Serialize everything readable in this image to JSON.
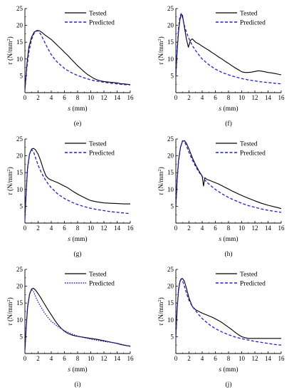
{
  "figure": {
    "colors": {
      "tested": "#000000",
      "predicted": "#1f1fd6",
      "axis": "#000000"
    }
  },
  "chart_data": [
    {
      "type": "line",
      "panel_label": "(e)",
      "xlabel_var": "s",
      "xlabel_unit": " (mm)",
      "ylabel_var": "τ",
      "ylabel_unit": " (N/mm",
      "ylabel_sup": "2",
      "ylabel_close": ")",
      "xlim": [
        0,
        16
      ],
      "ylim": [
        0,
        25
      ],
      "xticks": [
        "0",
        "2",
        "4",
        "6",
        "8",
        "10",
        "12",
        "14",
        "16"
      ],
      "yticks": [
        "5",
        "10",
        "15",
        "20",
        "25"
      ],
      "grid": false,
      "legend_position": "top-right",
      "series": [
        {
          "name": "Tested",
          "style": "solid",
          "x": [
            0,
            0.3,
            0.6,
            1.0,
            1.4,
            1.8,
            2.2,
            2.6,
            3.0,
            3.5,
            4.0,
            4.5,
            5.0,
            5.5,
            6.0,
            6.5,
            7.0,
            7.5,
            8.0,
            8.5,
            9.0,
            9.5,
            10.0,
            10.5,
            11.0,
            11.5,
            12.0,
            12.5,
            13.0,
            13.5,
            14.0,
            14.5,
            15.0,
            15.5,
            16.0
          ],
          "y": [
            1.0,
            8.5,
            13.5,
            16.5,
            18.0,
            18.5,
            18.4,
            17.9,
            17.2,
            16.5,
            15.8,
            14.9,
            13.9,
            13.0,
            12.0,
            11.1,
            10.0,
            9.0,
            8.0,
            7.1,
            6.2,
            5.4,
            4.8,
            4.2,
            3.8,
            3.5,
            3.3,
            3.2,
            3.1,
            3.0,
            2.9,
            2.7,
            2.6,
            2.5,
            2.4
          ]
        },
        {
          "name": "Predicted",
          "style": "dashed",
          "x": [
            0,
            0.3,
            0.6,
            1.0,
            1.4,
            1.8,
            2.0,
            2.4,
            2.8,
            3.2,
            3.6,
            4.0,
            4.5,
            5.0,
            6.0,
            7.0,
            8.0,
            9.0,
            10.0,
            11.0,
            12.0,
            13.0,
            14.0,
            15.0,
            16.0
          ],
          "y": [
            0.8,
            7.5,
            12.0,
            15.8,
            17.7,
            18.4,
            18.3,
            17.4,
            15.8,
            14.2,
            12.7,
            11.3,
            10.0,
            8.9,
            7.2,
            6.0,
            5.1,
            4.4,
            3.8,
            3.4,
            3.1,
            2.8,
            2.6,
            2.4,
            2.3
          ]
        }
      ]
    },
    {
      "type": "line",
      "panel_label": "(f)",
      "xlabel_var": "s",
      "xlabel_unit": " (mm)",
      "ylabel_var": "τ",
      "ylabel_unit": " (N/mm",
      "ylabel_sup": "2",
      "ylabel_close": ")",
      "xlim": [
        0,
        16
      ],
      "ylim": [
        0,
        25
      ],
      "xticks": [
        "0",
        "2",
        "4",
        "6",
        "8",
        "10",
        "12",
        "14",
        "16"
      ],
      "yticks": [
        "5",
        "10",
        "15",
        "20",
        "25"
      ],
      "grid": false,
      "legend_position": "top-right",
      "series": [
        {
          "name": "Tested",
          "style": "solid",
          "x": [
            0,
            0.2,
            0.4,
            0.6,
            0.8,
            1.0,
            1.3,
            1.6,
            1.9,
            2.2,
            2.5,
            3.0,
            3.5,
            4.0,
            4.5,
            5.0,
            5.5,
            6.0,
            6.5,
            7.0,
            7.5,
            8.0,
            8.5,
            9.0,
            9.5,
            10.0,
            10.5,
            11.0,
            11.5,
            12.0,
            12.5,
            13.0,
            13.5,
            14.0,
            14.5,
            15.0,
            15.5,
            16.0
          ],
          "y": [
            5.0,
            12.0,
            18.0,
            21.5,
            23.3,
            23.0,
            19.5,
            16.0,
            13.5,
            15.5,
            16.0,
            15.0,
            14.5,
            13.8,
            13.2,
            12.6,
            11.9,
            11.3,
            10.6,
            10.0,
            9.3,
            8.7,
            8.0,
            7.4,
            6.8,
            6.2,
            6.0,
            6.0,
            6.1,
            6.3,
            6.5,
            6.4,
            6.2,
            6.0,
            5.9,
            5.7,
            5.5,
            5.3
          ]
        },
        {
          "name": "Predicted",
          "style": "dashed",
          "x": [
            0,
            0.2,
            0.4,
            0.6,
            0.8,
            1.0,
            1.3,
            1.6,
            2.0,
            2.5,
            3.0,
            3.5,
            4.0,
            5.0,
            6.0,
            7.0,
            8.0,
            9.0,
            10.0,
            11.0,
            12.0,
            13.0,
            14.0,
            15.0,
            16.0
          ],
          "y": [
            5.0,
            13.0,
            19.0,
            22.5,
            23.5,
            22.3,
            20.0,
            18.0,
            16.0,
            14.0,
            12.5,
            11.2,
            10.0,
            8.3,
            7.0,
            6.0,
            5.3,
            4.7,
            4.2,
            3.8,
            3.5,
            3.2,
            3.0,
            2.8,
            2.6
          ]
        }
      ]
    },
    {
      "type": "line",
      "panel_label": "(g)",
      "xlabel_var": "s",
      "xlabel_unit": " (mm)",
      "ylabel_var": "τ",
      "ylabel_unit": " (N/mm",
      "ylabel_sup": "2",
      "ylabel_close": ")",
      "xlim": [
        0,
        16
      ],
      "ylim": [
        0,
        25
      ],
      "xticks": [
        "0",
        "2",
        "4",
        "6",
        "8",
        "10",
        "12",
        "14",
        "16"
      ],
      "yticks": [
        "5",
        "10",
        "15",
        "20",
        "25"
      ],
      "grid": false,
      "legend_position": "top-right",
      "series": [
        {
          "name": "Tested",
          "style": "solid",
          "x": [
            0,
            0.2,
            0.4,
            0.7,
            1.0,
            1.3,
            1.6,
            2.0,
            2.4,
            2.8,
            3.2,
            3.6,
            4.0,
            4.5,
            5.0,
            5.5,
            6.0,
            6.5,
            7.0,
            7.5,
            8.0,
            8.5,
            9.0,
            9.5,
            10.0,
            11.0,
            12.0,
            13.0,
            14.0,
            15.0,
            16.0
          ],
          "y": [
            1.5,
            10.0,
            16.5,
            20.5,
            22.0,
            22.2,
            21.8,
            20.5,
            18.5,
            16.0,
            14.0,
            13.2,
            12.8,
            12.4,
            12.0,
            11.5,
            11.0,
            10.5,
            9.8,
            9.2,
            8.6,
            8.1,
            7.6,
            7.1,
            6.7,
            6.3,
            6.0,
            5.9,
            5.8,
            5.7,
            5.7
          ]
        },
        {
          "name": "Predicted",
          "style": "dashed",
          "x": [
            0,
            0.2,
            0.4,
            0.7,
            1.0,
            1.3,
            1.6,
            2.0,
            2.5,
            3.0,
            3.5,
            4.0,
            5.0,
            6.0,
            7.0,
            8.0,
            9.0,
            10.0,
            11.0,
            12.0,
            13.0,
            14.0,
            15.0,
            16.0
          ],
          "y": [
            1.0,
            9.5,
            16.0,
            20.5,
            21.8,
            21.3,
            19.5,
            17.2,
            15.0,
            13.2,
            11.7,
            10.5,
            8.6,
            7.3,
            6.3,
            5.5,
            4.9,
            4.4,
            4.0,
            3.7,
            3.4,
            3.2,
            3.0,
            2.8
          ]
        }
      ]
    },
    {
      "type": "line",
      "panel_label": "(h)",
      "xlabel_var": "s",
      "xlabel_unit": " (mm)",
      "ylabel_var": "τ",
      "ylabel_unit": " (N/mm",
      "ylabel_sup": "2",
      "ylabel_close": ")",
      "xlim": [
        0,
        16
      ],
      "ylim": [
        0,
        25
      ],
      "xticks": [
        "0",
        "2",
        "4",
        "6",
        "8",
        "10",
        "12",
        "14",
        "16"
      ],
      "yticks": [
        "5",
        "10",
        "15",
        "20",
        "25"
      ],
      "grid": false,
      "legend_position": "top-right",
      "series": [
        {
          "name": "Tested",
          "style": "solid",
          "x": [
            0,
            0.2,
            0.4,
            0.7,
            1.0,
            1.3,
            1.6,
            2.0,
            2.5,
            3.0,
            3.5,
            4.0,
            4.2,
            4.4,
            4.7,
            5.0,
            5.5,
            6.0,
            6.5,
            7.0,
            7.5,
            8.0,
            8.5,
            9.0,
            10.0,
            11.0,
            12.0,
            13.0,
            14.0,
            15.0,
            15.5,
            16.0
          ],
          "y": [
            5.0,
            13.0,
            18.5,
            22.5,
            24.3,
            24.5,
            23.8,
            22.0,
            19.5,
            17.3,
            15.5,
            14.0,
            11.0,
            13.5,
            13.0,
            12.8,
            12.4,
            12.0,
            11.6,
            11.1,
            10.6,
            10.1,
            9.6,
            9.1,
            8.2,
            7.4,
            6.6,
            5.9,
            5.3,
            4.8,
            4.6,
            4.3
          ]
        },
        {
          "name": "Predicted",
          "style": "dashed",
          "x": [
            0,
            0.2,
            0.4,
            0.7,
            1.0,
            1.3,
            1.6,
            2.0,
            2.5,
            3.0,
            3.5,
            4.0,
            4.5,
            5.0,
            6.0,
            7.0,
            8.0,
            9.0,
            10.0,
            11.0,
            12.0,
            13.0,
            14.0,
            15.0,
            16.0
          ],
          "y": [
            5.0,
            12.5,
            18.0,
            22.5,
            24.5,
            24.3,
            23.0,
            21.0,
            18.8,
            16.8,
            15.2,
            13.8,
            12.6,
            11.6,
            10.0,
            8.7,
            7.6,
            6.7,
            5.9,
            5.2,
            4.7,
            4.2,
            3.8,
            3.5,
            3.2
          ]
        }
      ]
    },
    {
      "type": "line",
      "panel_label": "(i)",
      "xlabel_var": "s",
      "xlabel_unit": " (mm)",
      "ylabel_var": "τ",
      "ylabel_unit": " (N/mm",
      "ylabel_sup": "2",
      "ylabel_close": ")",
      "xlim": [
        0,
        16
      ],
      "ylim": [
        0,
        25
      ],
      "xticks": [
        "0",
        "2",
        "4",
        "6",
        "8",
        "10",
        "12",
        "14",
        "16"
      ],
      "yticks": [
        "5",
        "10",
        "15",
        "20",
        "25"
      ],
      "grid": false,
      "legend_position": "top-right",
      "series": [
        {
          "name": "Tested",
          "style": "solid",
          "x": [
            0,
            0.2,
            0.4,
            0.7,
            1.0,
            1.3,
            1.6,
            2.0,
            2.5,
            3.0,
            3.5,
            4.0,
            4.5,
            5.0,
            5.5,
            6.0,
            6.5,
            7.0,
            7.5,
            8.0,
            9.0,
            10.0,
            11.0,
            12.0,
            13.0,
            14.0,
            14.5,
            15.0,
            15.5,
            16.0
          ],
          "y": [
            1.0,
            8.0,
            13.5,
            17.5,
            19.2,
            19.4,
            18.9,
            17.8,
            16.3,
            14.6,
            13.0,
            11.5,
            10.0,
            8.6,
            7.5,
            6.6,
            6.0,
            5.6,
            5.3,
            5.1,
            4.8,
            4.5,
            4.2,
            3.8,
            3.4,
            3.0,
            2.7,
            2.5,
            2.3,
            2.2
          ]
        },
        {
          "name": "Predicted",
          "style": "dotted",
          "x": [
            0,
            0.2,
            0.4,
            0.7,
            1.0,
            1.3,
            1.6,
            2.0,
            2.5,
            3.0,
            3.5,
            4.0,
            5.0,
            6.0,
            7.0,
            8.0,
            9.0,
            10.0,
            11.0,
            12.0,
            13.0,
            14.0,
            15.0,
            16.0
          ],
          "y": [
            1.0,
            8.5,
            14.0,
            17.8,
            19.0,
            18.5,
            17.0,
            15.3,
            13.6,
            12.0,
            10.7,
            9.6,
            8.0,
            6.8,
            5.9,
            5.2,
            4.7,
            4.3,
            3.9,
            3.6,
            3.3,
            3.0,
            2.6,
            2.1
          ]
        }
      ]
    },
    {
      "type": "line",
      "panel_label": "(j)",
      "xlabel_var": "s",
      "xlabel_unit": " (mm)",
      "ylabel_var": "τ",
      "ylabel_unit": " (N/mm",
      "ylabel_sup": "2",
      "ylabel_close": ")",
      "xlim": [
        0,
        16
      ],
      "ylim": [
        0,
        25
      ],
      "xticks": [
        "0",
        "2",
        "4",
        "6",
        "8",
        "10",
        "12",
        "14",
        "16"
      ],
      "yticks": [
        "5",
        "10",
        "15",
        "20",
        "25"
      ],
      "grid": false,
      "legend_position": "top-right",
      "series": [
        {
          "name": "Tested",
          "style": "solid",
          "x": [
            0,
            0.2,
            0.4,
            0.6,
            0.8,
            1.0,
            1.3,
            1.6,
            2.0,
            2.5,
            3.0,
            3.5,
            4.0,
            4.5,
            5.0,
            5.5,
            6.0,
            6.5,
            7.0,
            7.5,
            8.0,
            8.5,
            9.0,
            9.5,
            10.0,
            10.5,
            11.0,
            12.0,
            13.0,
            14.0,
            15.0,
            16.0
          ],
          "y": [
            5.0,
            13.0,
            18.5,
            21.2,
            22.2,
            22.3,
            21.5,
            19.5,
            16.5,
            14.0,
            13.0,
            12.5,
            12.0,
            11.6,
            11.2,
            10.8,
            10.3,
            9.8,
            9.2,
            8.5,
            7.8,
            7.1,
            6.3,
            5.6,
            5.0,
            4.7,
            4.5,
            4.5,
            4.5,
            4.5,
            4.5,
            4.5
          ]
        },
        {
          "name": "Predicted",
          "style": "dashed",
          "x": [
            0,
            0.2,
            0.4,
            0.6,
            0.8,
            1.0,
            1.3,
            1.6,
            2.0,
            2.5,
            3.0,
            3.5,
            4.0,
            5.0,
            6.0,
            7.0,
            8.0,
            9.0,
            10.0,
            11.0,
            12.0,
            13.0,
            14.0,
            15.0,
            16.0
          ],
          "y": [
            5.0,
            13.5,
            19.0,
            21.5,
            22.0,
            21.7,
            20.0,
            18.0,
            15.8,
            14.0,
            12.7,
            11.5,
            10.4,
            8.7,
            7.4,
            6.4,
            5.6,
            4.9,
            4.4,
            4.0,
            3.6,
            3.3,
            3.0,
            2.7,
            2.5
          ]
        }
      ]
    }
  ]
}
